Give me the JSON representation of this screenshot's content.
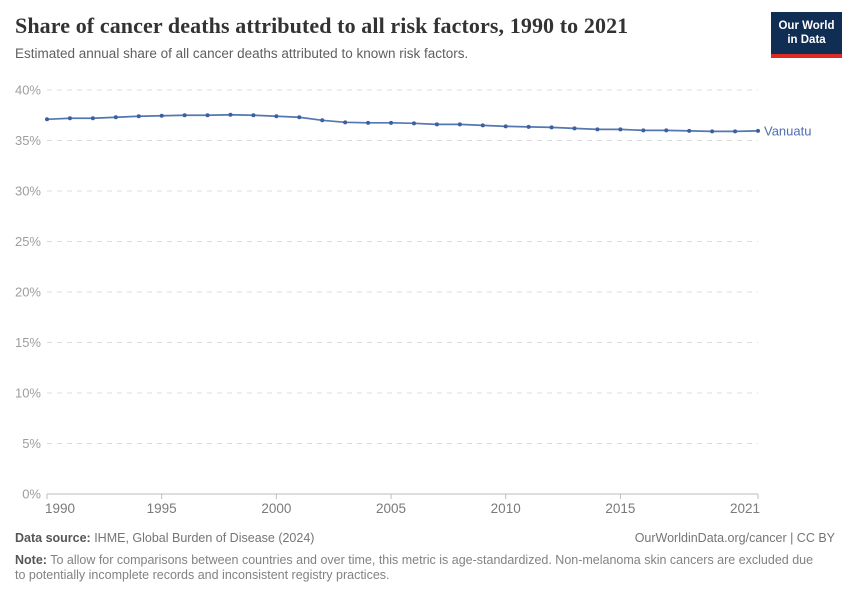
{
  "header": {
    "title": "Share of cancer deaths attributed to all risk factors, 1990 to 2021",
    "subtitle": "Estimated annual share of all cancer deaths attributed to known risk factors.",
    "logo": {
      "line1": "Our World",
      "line2": "in Data",
      "navy": "#102D54",
      "red": "#DD2A27"
    }
  },
  "chart_data": {
    "type": "line",
    "title": "Share of cancer deaths attributed to all risk factors, 1990 to 2021",
    "xlabel": "",
    "ylabel": "",
    "xlim": [
      1990,
      2021
    ],
    "ylim": [
      0,
      40
    ],
    "grid": "horizontal-dashed",
    "legend_position": "line-end-label",
    "x": [
      1990,
      1991,
      1992,
      1993,
      1994,
      1995,
      1996,
      1997,
      1998,
      1999,
      2000,
      2001,
      2002,
      2003,
      2004,
      2005,
      2006,
      2007,
      2008,
      2009,
      2010,
      2011,
      2012,
      2013,
      2014,
      2015,
      2016,
      2017,
      2018,
      2019,
      2020,
      2021
    ],
    "series": [
      {
        "name": "Vanuatu",
        "color": "#5377AE",
        "marker_color": "#3C5FA0",
        "label_color": "#4D6EB6",
        "values": [
          37.1,
          37.2,
          37.2,
          37.3,
          37.4,
          37.45,
          37.5,
          37.5,
          37.55,
          37.5,
          37.4,
          37.3,
          37.0,
          36.8,
          36.75,
          36.75,
          36.7,
          36.6,
          36.6,
          36.5,
          36.4,
          36.35,
          36.3,
          36.2,
          36.1,
          36.1,
          36.0,
          36.0,
          35.95,
          35.9,
          35.9,
          35.95
        ]
      }
    ],
    "yticks": [
      {
        "v": 0,
        "label": "0%"
      },
      {
        "v": 5,
        "label": "5%"
      },
      {
        "v": 10,
        "label": "10%"
      },
      {
        "v": 15,
        "label": "15%"
      },
      {
        "v": 20,
        "label": "20%"
      },
      {
        "v": 25,
        "label": "25%"
      },
      {
        "v": 30,
        "label": "30%"
      },
      {
        "v": 35,
        "label": "35%"
      },
      {
        "v": 40,
        "label": "40%"
      }
    ],
    "xticks": [
      {
        "v": 1990,
        "label": "1990"
      },
      {
        "v": 1995,
        "label": "1995"
      },
      {
        "v": 2000,
        "label": "2000"
      },
      {
        "v": 2005,
        "label": "2005"
      },
      {
        "v": 2010,
        "label": "2010"
      },
      {
        "v": 2015,
        "label": "2015"
      },
      {
        "v": 2021,
        "label": "2021"
      }
    ]
  },
  "footer": {
    "datasource_label": "Data source:",
    "datasource_text": " IHME, Global Burden of Disease (2024)",
    "link": "OurWorldinData.org/cancer | CC BY",
    "note_label": "Note:",
    "note_text": " To allow for comparisons between countries and over time, this metric is age-standardized. Non-melanoma skin cancers are excluded due to potentially incomplete records and inconsistent registry practices."
  }
}
